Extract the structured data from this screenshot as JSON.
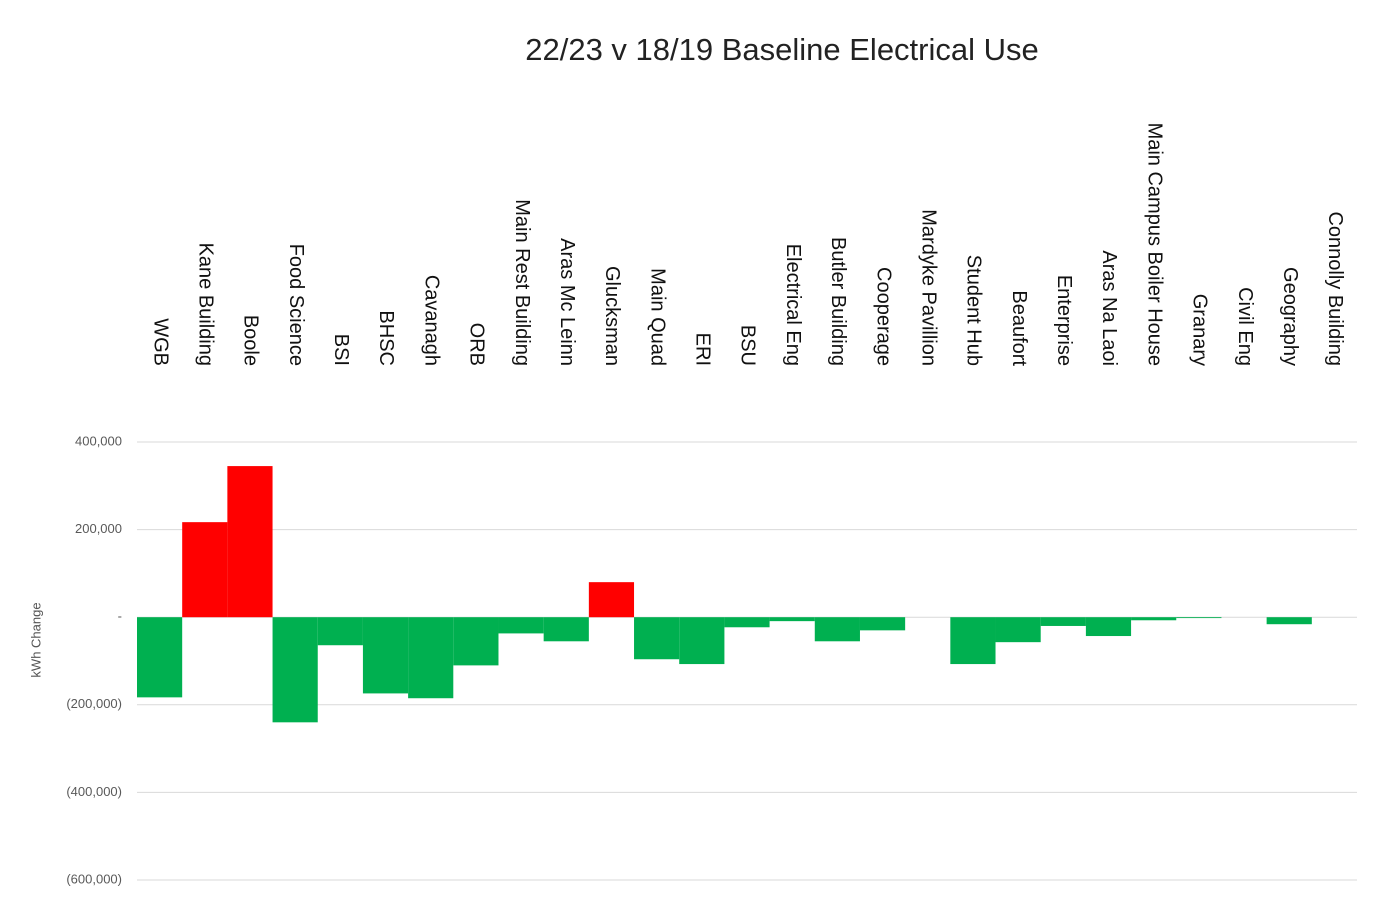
{
  "chart_data": {
    "type": "bar",
    "title": "22/23  v 18/19 Baseline Electrical Use",
    "y_axis_label": "kWh Change",
    "categories": [
      "WGB",
      "Kane Building",
      "Boole",
      "Food Science",
      "BSI",
      "BHSC",
      "Cavanagh",
      "ORB",
      "Main Rest Building",
      "Aras Mc Leinn",
      "Glucksman",
      "Main Quad",
      "ERI",
      "BSU",
      "Electrical Eng",
      "Butler Building",
      "Cooperage",
      "Mardyke Pavillion",
      "Student Hub",
      "Beaufort",
      "Enterprise",
      "Aras Na Laoi",
      "Main Campus Boiler House",
      "Granary",
      "Civil Eng",
      "Geography",
      "Connolly Building"
    ],
    "values": [
      -183000,
      217000,
      345000,
      -240000,
      -64000,
      -174000,
      -185000,
      -110000,
      -37000,
      -55000,
      80000,
      -96000,
      -107000,
      -23000,
      -9000,
      -55000,
      -30000,
      0,
      -107000,
      -57000,
      -20000,
      -43000,
      -7000,
      -2000,
      0,
      -16000,
      0
    ],
    "positive_color": "#ff0000",
    "negative_color": "#00b050",
    "ylim": [
      -600000,
      400000
    ],
    "yticks": [
      {
        "value": -600000,
        "label": "(600,000)"
      },
      {
        "value": -400000,
        "label": "(400,000)"
      },
      {
        "value": -200000,
        "label": "(200,000)"
      },
      {
        "value": 0,
        "label": "-"
      },
      {
        "value": 200000,
        "label": "200,000"
      },
      {
        "value": 400000,
        "label": "400,000"
      }
    ],
    "grid": true
  }
}
